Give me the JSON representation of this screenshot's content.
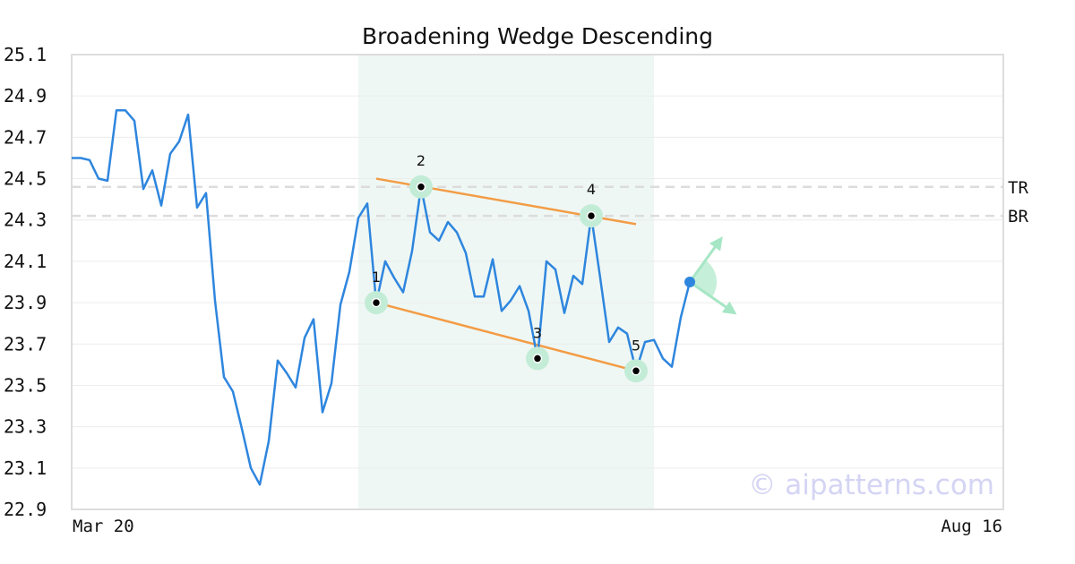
{
  "chart_data": {
    "type": "line",
    "title": "Broadening Wedge Descending",
    "xlabel": "",
    "ylabel": "",
    "ylim": [
      22.9,
      25.1
    ],
    "yticks": [
      "25.1",
      "24.9",
      "24.7",
      "24.5",
      "24.3",
      "24.1",
      "23.9",
      "23.7",
      "23.5",
      "23.3",
      "23.1",
      "22.9"
    ],
    "xtick_labels": [
      "Mar 20",
      "Aug 16"
    ],
    "x_count": 105,
    "grid": true,
    "series": [
      {
        "color": "#2e86de",
        "values": [
          24.6,
          24.6,
          24.59,
          24.5,
          24.49,
          24.83,
          24.83,
          24.78,
          24.45,
          24.54,
          24.37,
          24.62,
          24.68,
          24.81,
          24.36,
          24.43,
          23.91,
          23.54,
          23.47,
          23.29,
          23.1,
          23.02,
          23.23,
          23.62,
          23.56,
          23.49,
          23.73,
          23.82,
          23.37,
          23.51,
          23.89,
          24.05,
          24.31,
          24.38,
          23.9,
          24.1,
          24.02,
          23.95,
          24.15,
          24.46,
          24.24,
          24.2,
          24.29,
          24.24,
          24.14,
          23.93,
          23.93,
          24.11,
          23.86,
          23.91,
          23.98,
          23.86,
          23.63,
          24.1,
          24.06,
          23.85,
          24.03,
          23.99,
          24.32,
          24.02,
          23.71,
          23.78,
          23.75,
          23.57,
          23.71,
          23.72,
          23.63,
          23.59,
          23.83,
          24.0
        ]
      }
    ],
    "highlight_range": [
      32,
      65
    ],
    "levels": [
      {
        "label": "TR",
        "value": 24.46
      },
      {
        "label": "BR",
        "value": 24.32
      }
    ],
    "trendlines": [
      {
        "x0": 34,
        "y0": 24.5,
        "x1": 63,
        "y1": 24.28,
        "color": "#f39c45"
      },
      {
        "x0": 34,
        "y0": 23.9,
        "x1": 63,
        "y1": 23.57,
        "color": "#f39c45"
      }
    ],
    "pivots": [
      {
        "label": "1",
        "x": 34,
        "y": 23.9
      },
      {
        "label": "2",
        "x": 39,
        "y": 24.46
      },
      {
        "label": "3",
        "x": 52,
        "y": 23.63
      },
      {
        "label": "4",
        "x": 58,
        "y": 24.32
      },
      {
        "label": "5",
        "x": 63,
        "y": 23.57
      }
    ],
    "current_point": {
      "x": 69,
      "y": 24.0
    },
    "projection": {
      "up": {
        "x": 72.5,
        "y": 24.21
      },
      "down": {
        "x": 74,
        "y": 23.85
      }
    },
    "colors": {
      "line": "#2e86de",
      "highlight": "#eef7f4",
      "trend": "#f39c45",
      "pivot_halo": "#c3ecd7",
      "arrow": "#a6e6c5"
    }
  },
  "watermark": "© aipatterns.com"
}
